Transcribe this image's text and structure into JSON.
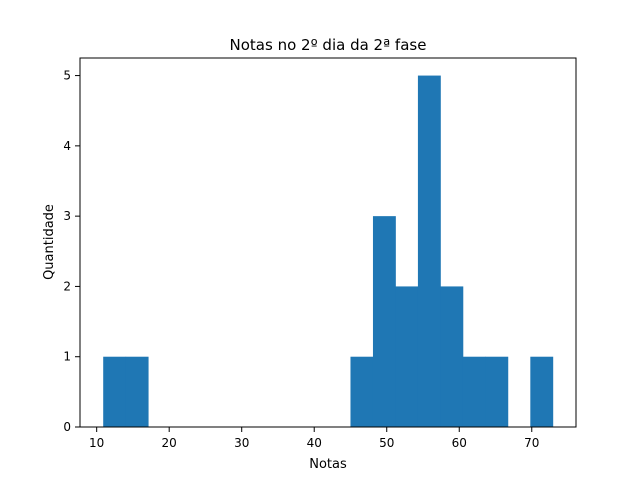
{
  "chart_data": {
    "type": "bar",
    "title": "Notas no 2º dia da 2ª fase",
    "xlabel": "Notas",
    "ylabel": "Quantidade",
    "bin_edges": [
      10.9,
      14.0,
      17.1,
      20.2,
      23.3,
      26.4,
      29.5,
      32.6,
      35.7,
      38.8,
      41.9,
      45.0,
      48.1,
      51.2,
      54.3,
      57.4,
      60.5,
      63.6,
      66.7,
      69.8,
      72.9
    ],
    "values": [
      1,
      1,
      0,
      0,
      0,
      0,
      0,
      0,
      0,
      0,
      0,
      1,
      3,
      2,
      5,
      2,
      1,
      1,
      0,
      1
    ],
    "xlim": [
      7.7,
      76.1
    ],
    "ylim": [
      0,
      5.25
    ],
    "xticks": [
      10,
      20,
      30,
      40,
      50,
      60,
      70
    ],
    "yticks": [
      0,
      1,
      2,
      3,
      4,
      5
    ],
    "bar_color": "#1f77b4",
    "grid": false,
    "legend": "none"
  }
}
